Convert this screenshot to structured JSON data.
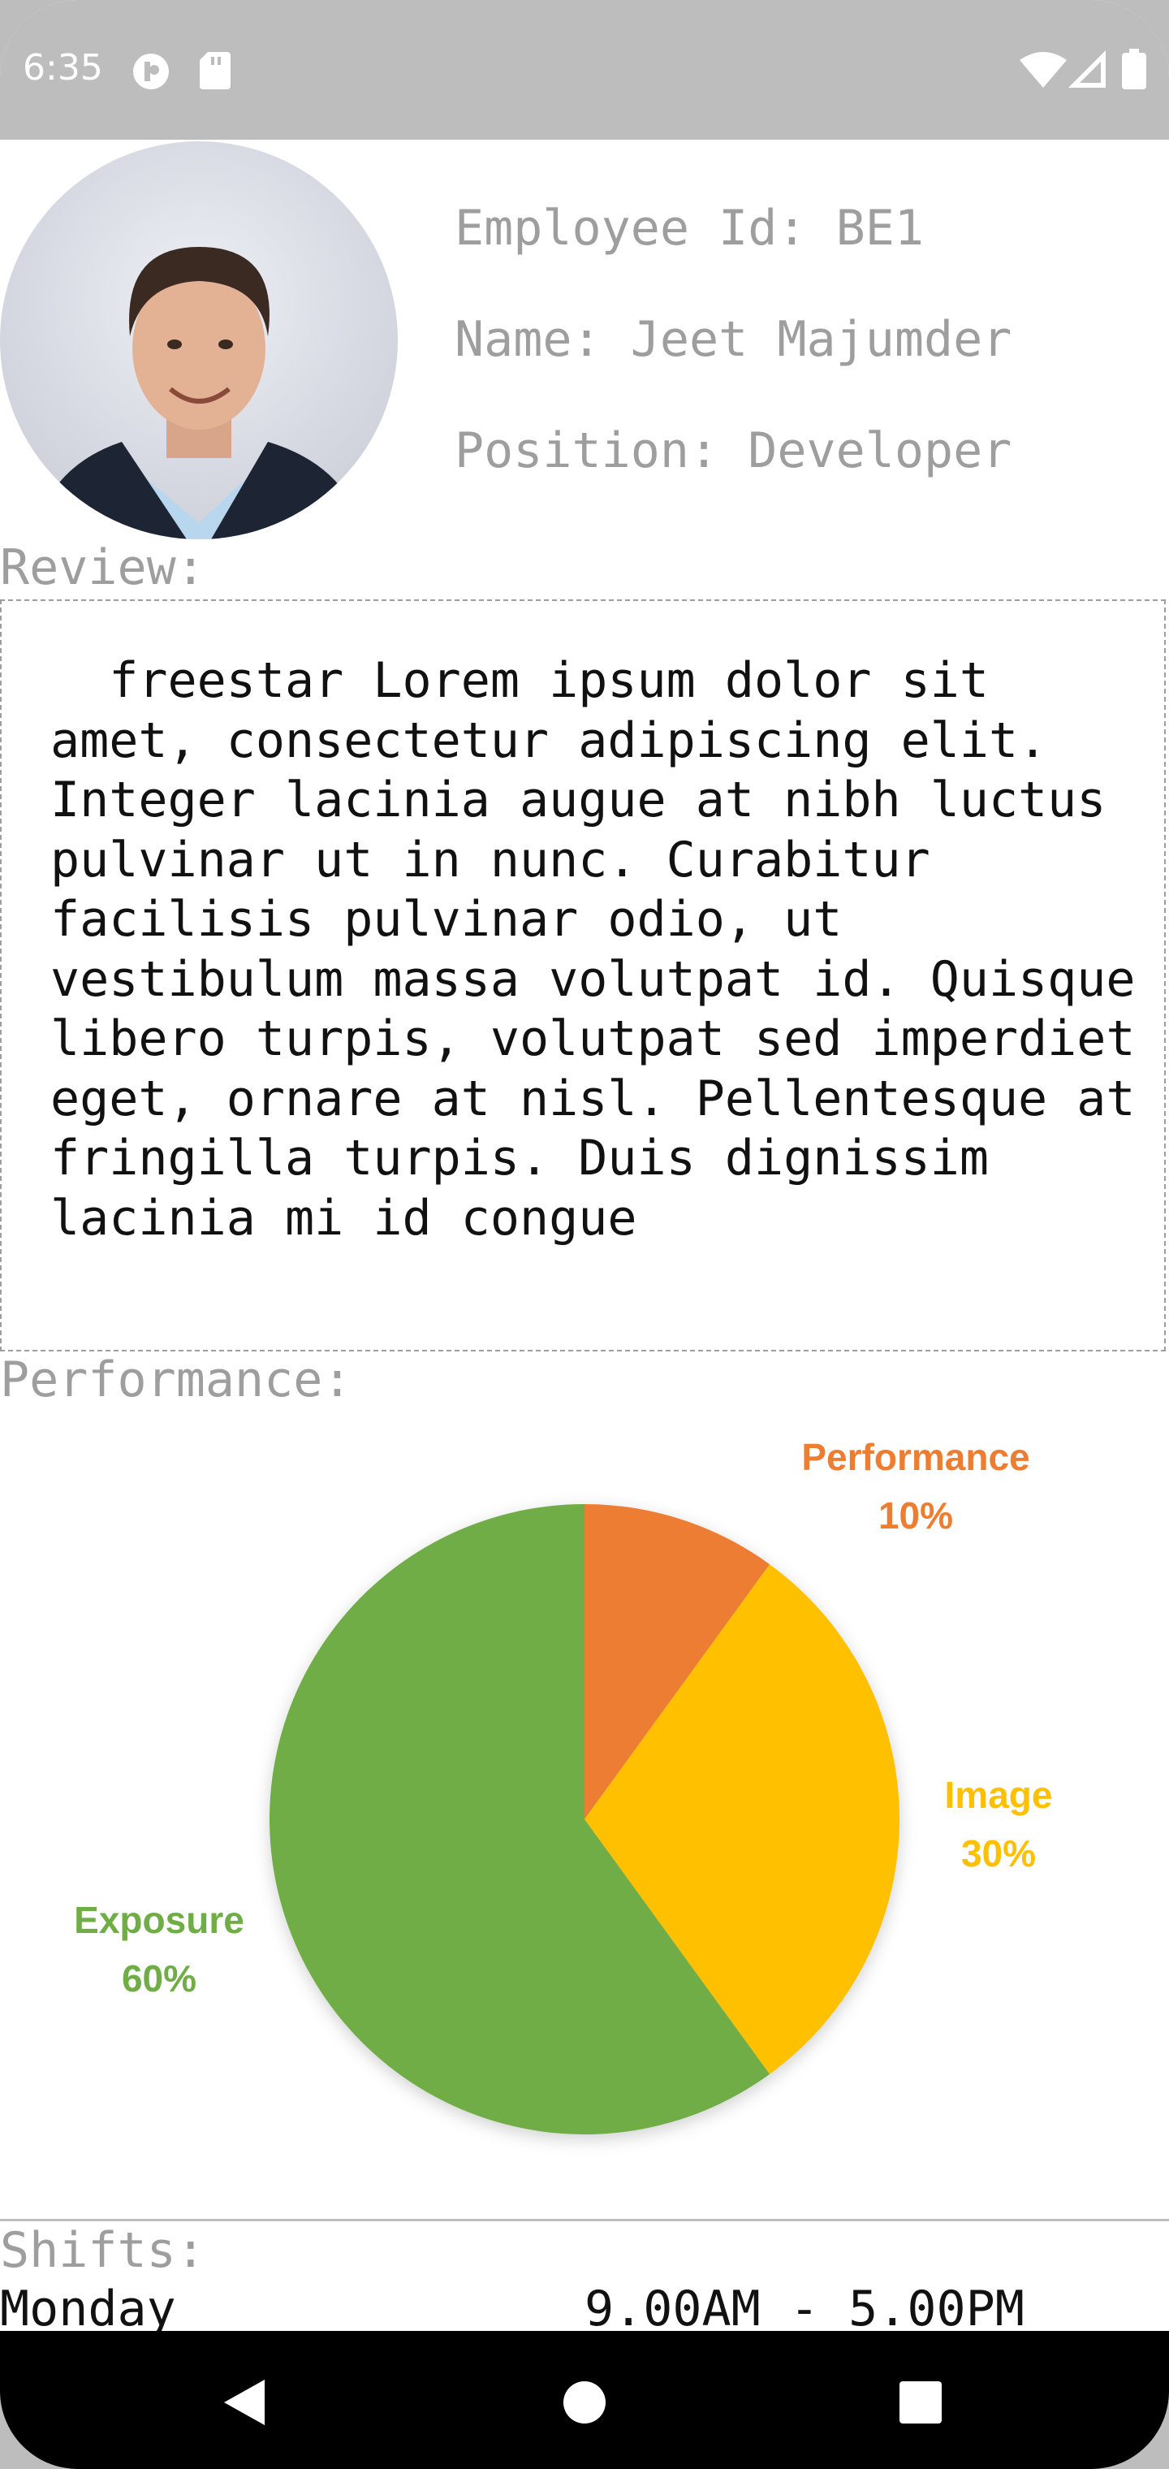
{
  "status_bar": {
    "time": "6:35"
  },
  "employee": {
    "id_text": "Employee Id: BE1",
    "name_text": "Name: Jeet Majumder",
    "position_text": "Position: Developer"
  },
  "review": {
    "label": "Review:",
    "text": "  freestar Lorem ipsum dolor sit amet, consectetur adipiscing elit. Integer lacinia augue at nibh luctus pulvinar ut in nunc. Curabitur facilisis pulvinar odio, ut vestibulum massa volutpat id. Quisque libero turpis, volutpat sed imperdiet eget, ornare at nisl. Pellentesque at fringilla turpis. Duis dignissim lacinia mi id congue"
  },
  "performance": {
    "label": "Performance:"
  },
  "chart_data": {
    "type": "pie",
    "categories": [
      "Performance",
      "Image",
      "Exposure"
    ],
    "values": [
      10,
      30,
      60
    ],
    "labels": [
      "10%",
      "30%",
      "60%"
    ],
    "colors": [
      "#ED7D31",
      "#FFC000",
      "#70AD47"
    ],
    "title": ""
  },
  "shifts": {
    "label": "Shifts:",
    "rows": [
      {
        "day": "Monday",
        "time": "9.00AM - 5.00PM"
      }
    ]
  },
  "colors": {
    "status_bar": "#bdbdbd",
    "label_gray": "#9e9e9e",
    "nav_bar": "#000000"
  }
}
